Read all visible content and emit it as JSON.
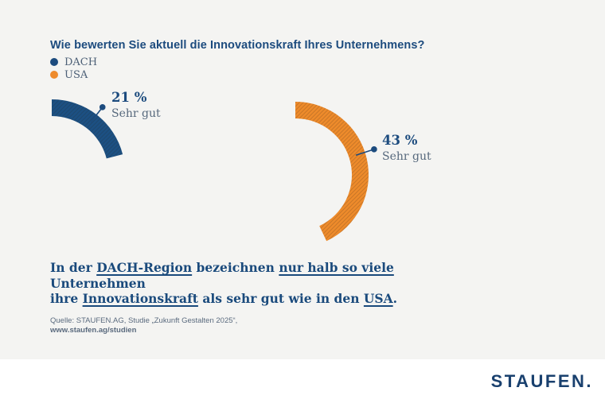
{
  "header": {
    "title": "Wie bewerten Sie aktuell die Innovationskraft Ihres Unternehmens?"
  },
  "legend": [
    {
      "label": "DACH",
      "color": "#1c4b7e"
    },
    {
      "label": "USA",
      "color": "#ee8b2c"
    }
  ],
  "chart_data": {
    "type": "donut",
    "unit": "%",
    "title": "Wie bewerten Sie aktuell die Innovationskraft Ihres Unternehmens?",
    "legend_position": "top-left",
    "series": [
      {
        "name": "DACH",
        "value": 21,
        "display": "21 %",
        "caption": "Sehr gut",
        "color": "#1c5083"
      },
      {
        "name": "USA",
        "value": 43,
        "display": "43 %",
        "caption": "Sehr gut",
        "color": "#ee8b2b"
      }
    ],
    "annotation_color": "#1c4b7e"
  },
  "statement": {
    "lines": [
      [
        {
          "t": "In der "
        },
        {
          "t": "DACH-Region",
          "u": true
        },
        {
          "t": " bezeichnen "
        },
        {
          "t": "nur halb so viele",
          "u": true
        },
        {
          "t": " Unternehmen"
        }
      ],
      [
        {
          "t": "ihre "
        },
        {
          "t": "Innovationskraft",
          "u": true
        },
        {
          "t": " als sehr gut wie in den "
        },
        {
          "t": "USA",
          "u": true
        },
        {
          "t": "."
        }
      ]
    ]
  },
  "source": {
    "line1": "Quelle: STAUFEN.AG, Studie „Zukunft Gestalten 2025“,",
    "line2": "www.staufen.ag/studien"
  },
  "footer": {
    "logo": "STAUFEN."
  },
  "colors": {
    "background": "#f4f4f2",
    "footer_background": "#ffffff",
    "navy": "#1c4b7e",
    "orange": "#ee8b2b",
    "slate_text": "#56687c"
  }
}
